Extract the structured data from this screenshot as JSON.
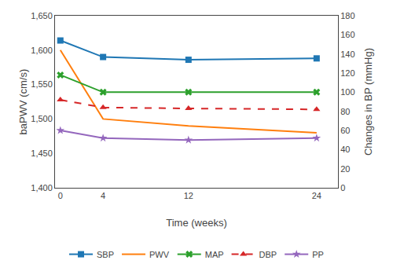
{
  "chart_data": {
    "type": "line",
    "x": [
      0,
      4,
      12,
      24
    ],
    "xlabel": "Time (weeks)",
    "ylabel": "baPWV (cm/s)",
    "y2label": "Changes in BP (mmHg)",
    "xlim": [
      -0.5,
      26
    ],
    "xticks": [
      0,
      4,
      12,
      24
    ],
    "ylim": [
      1400,
      1650
    ],
    "yticks": [
      {
        "value": 1400,
        "label": "1,400"
      },
      {
        "value": 1450,
        "label": "1,450"
      },
      {
        "value": 1500,
        "label": "1,500"
      },
      {
        "value": 1550,
        "label": "1,550"
      },
      {
        "value": 1600,
        "label": "1,600"
      },
      {
        "value": 1650,
        "label": "1,650"
      }
    ],
    "y2lim": [
      0,
      180
    ],
    "y2ticks": [
      0,
      20,
      40,
      60,
      80,
      100,
      120,
      140,
      160,
      180
    ],
    "grid": false,
    "legend": "bottom",
    "series": [
      {
        "name": "SBP",
        "values": [
          1614,
          1590,
          1586,
          1588
        ],
        "axis": "y",
        "marker": "square",
        "line_style": "solid"
      },
      {
        "name": "PWV",
        "values": [
          1600,
          1500,
          1490,
          1480
        ],
        "axis": "y",
        "line_style": "solid"
      },
      {
        "name": "MAP",
        "values": [
          118,
          100,
          100,
          100
        ],
        "axis": "y2",
        "marker": "x",
        "line_style": "solid"
      },
      {
        "name": "DBP",
        "values": [
          92,
          84,
          83,
          82
        ],
        "axis": "y2",
        "marker": "triangle",
        "line_style": "dashed"
      },
      {
        "name": "PP",
        "values": [
          60,
          52,
          50,
          52
        ],
        "axis": "y2",
        "marker": "star",
        "line_style": "solid"
      }
    ]
  }
}
